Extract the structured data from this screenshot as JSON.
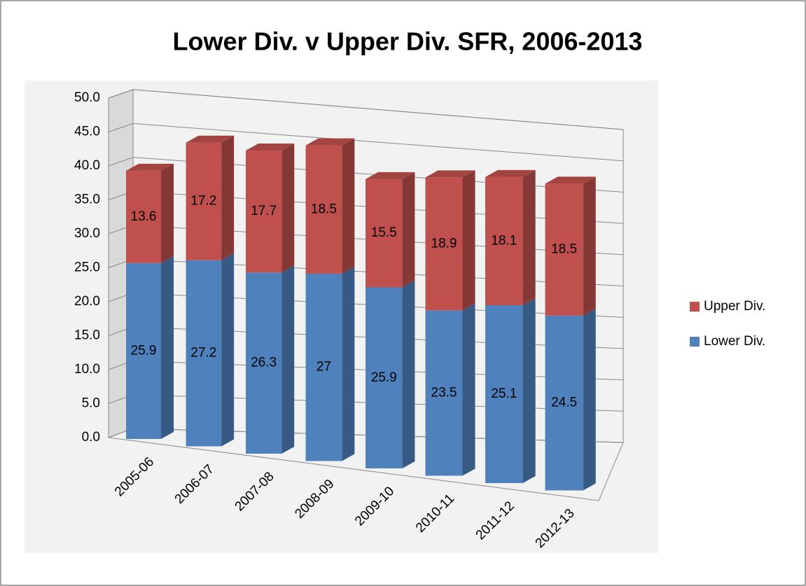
{
  "chart_data": {
    "type": "bar3d_stacked",
    "title": "Lower Div. v Upper Div. SFR, 2006-2013",
    "categories": [
      "2005-06",
      "2006-07",
      "2007-08",
      "2008-09",
      "2009-10",
      "2010-11",
      "2011-12",
      "2012-13"
    ],
    "series": [
      {
        "name": "Lower Div.",
        "color": "#4f81bd",
        "values": [
          25.9,
          27.2,
          26.3,
          27,
          25.9,
          23.5,
          25.1,
          24.5
        ]
      },
      {
        "name": "Upper Div.",
        "color": "#c0504d",
        "values": [
          13.6,
          17.2,
          17.7,
          18.5,
          15.5,
          18.9,
          18.1,
          18.5
        ]
      }
    ],
    "ylim": [
      0,
      50
    ],
    "yticks": [
      {
        "value": 0,
        "label": "0.0"
      },
      {
        "value": 5,
        "label": "5.0"
      },
      {
        "value": 10,
        "label": "10.0"
      },
      {
        "value": 15,
        "label": "15.0"
      },
      {
        "value": 20,
        "label": "20.0"
      },
      {
        "value": 25,
        "label": "25.0"
      },
      {
        "value": 30,
        "label": "30.0"
      },
      {
        "value": 35,
        "label": "35.0"
      },
      {
        "value": 40,
        "label": "40.0"
      },
      {
        "value": 45,
        "label": "45.0"
      },
      {
        "value": 50,
        "label": "50.0"
      }
    ],
    "grid": true,
    "legend": "right"
  }
}
